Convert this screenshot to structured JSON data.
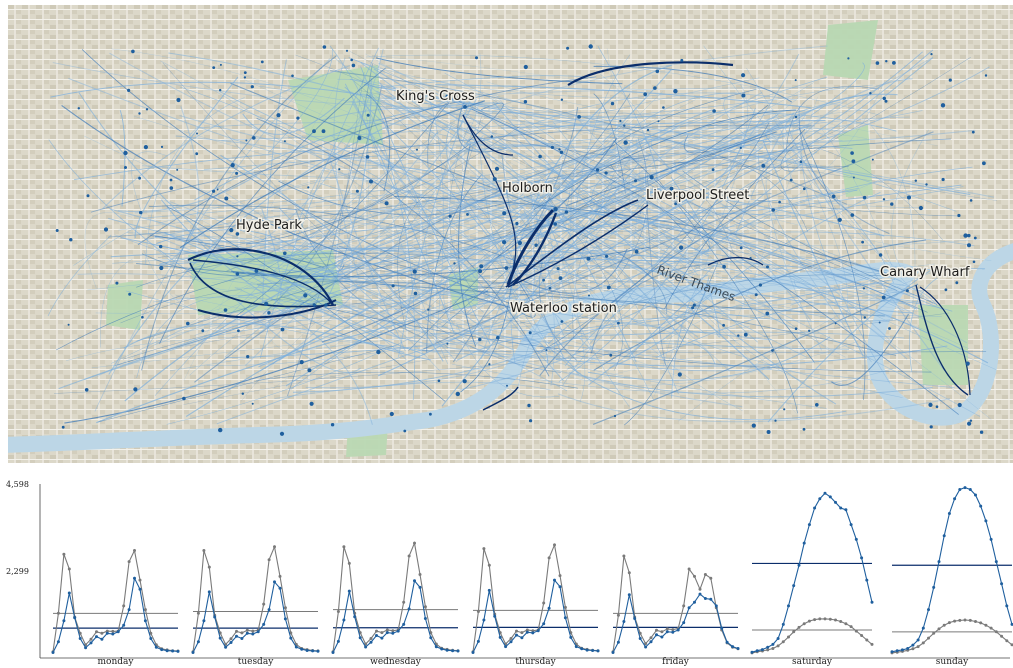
{
  "map": {
    "labels": [
      {
        "id": "kings-cross",
        "text": "King's Cross"
      },
      {
        "id": "hyde-park",
        "text": "Hyde Park"
      },
      {
        "id": "holborn",
        "text": "Holborn"
      },
      {
        "id": "liverpool-street",
        "text": "Liverpool Street"
      },
      {
        "id": "waterloo-station",
        "text": "Waterloo station"
      },
      {
        "id": "canary-wharf",
        "text": "Canary Wharf"
      }
    ],
    "river_label": "River Thames",
    "colors": {
      "land": "#e6e3d8",
      "streets": "#ffffff",
      "parks": "#b9d8b3",
      "water": "#bcd6e6",
      "flow_light": "#8fb9df",
      "flow_dark": "#0b2e6b",
      "station": "#1f5f9e"
    }
  },
  "chart_data": {
    "type": "line",
    "title": "",
    "ylim": [
      0,
      4598
    ],
    "yticks": [
      "4,598",
      "2,299"
    ],
    "ytick_values": [
      4598,
      2299
    ],
    "x_hours": [
      0,
      1,
      2,
      3,
      4,
      5,
      6,
      7,
      8,
      9,
      10,
      11,
      12,
      13,
      14,
      15,
      16,
      17,
      18,
      19,
      20,
      21,
      22,
      23
    ],
    "colors": {
      "weekday_series": "#1f5f9e",
      "other_series": "#7a7a7a",
      "avg_line": "#0b2e6b",
      "avg_line_other": "#7a7a7a"
    },
    "days": [
      {
        "name": "monday",
        "blue": [
          40,
          330,
          900,
          1650,
          980,
          420,
          170,
          300,
          470,
          400,
          560,
          540,
          600,
          780,
          1200,
          2050,
          1750,
          900,
          420,
          180,
          120,
          90,
          80,
          70
        ],
        "gray": [
          60,
          1100,
          2700,
          2300,
          1000,
          560,
          250,
          400,
          600,
          560,
          620,
          610,
          620,
          1300,
          2500,
          2800,
          2000,
          1200,
          560,
          250,
          140,
          110,
          90,
          80
        ],
        "avg_blue": 700,
        "avg_gray": 1100
      },
      {
        "name": "tuesday",
        "blue": [
          40,
          330,
          900,
          1680,
          1000,
          430,
          180,
          310,
          480,
          420,
          560,
          540,
          600,
          800,
          1200,
          1950,
          1780,
          950,
          430,
          190,
          130,
          95,
          85,
          75
        ],
        "gray": [
          60,
          1100,
          2800,
          2350,
          1050,
          570,
          260,
          410,
          610,
          570,
          640,
          620,
          640,
          1350,
          2550,
          2900,
          2100,
          1250,
          570,
          260,
          150,
          120,
          95,
          85
        ],
        "avg_blue": 700,
        "avg_gray": 1150
      },
      {
        "name": "wednesday",
        "blue": [
          40,
          340,
          920,
          1700,
          1010,
          440,
          190,
          320,
          500,
          430,
          580,
          560,
          620,
          800,
          1220,
          1980,
          1800,
          960,
          440,
          195,
          135,
          100,
          90,
          80
        ],
        "gray": [
          60,
          1150,
          2900,
          2450,
          1100,
          580,
          270,
          420,
          620,
          580,
          650,
          630,
          650,
          1400,
          2650,
          3000,
          2150,
          1280,
          580,
          270,
          155,
          125,
          100,
          90
        ],
        "avg_blue": 710,
        "avg_gray": 1200
      },
      {
        "name": "thursday",
        "blue": [
          40,
          340,
          920,
          1720,
          1020,
          450,
          200,
          330,
          510,
          440,
          590,
          570,
          630,
          820,
          1240,
          2000,
          1820,
          980,
          450,
          200,
          140,
          105,
          95,
          85
        ],
        "gray": [
          60,
          1150,
          2850,
          2400,
          1080,
          580,
          270,
          420,
          620,
          580,
          650,
          630,
          650,
          1380,
          2600,
          2950,
          2120,
          1260,
          580,
          270,
          155,
          125,
          100,
          90
        ],
        "avg_blue": 720,
        "avg_gray": 1180
      },
      {
        "name": "friday",
        "blue": [
          40,
          320,
          880,
          1600,
          960,
          420,
          190,
          330,
          520,
          460,
          600,
          590,
          650,
          850,
          1250,
          1400,
          1620,
          1500,
          1480,
          1300,
          700,
          320,
          200,
          150
        ],
        "gray": [
          60,
          1050,
          2650,
          2200,
          1000,
          560,
          280,
          440,
          640,
          600,
          680,
          660,
          690,
          1300,
          2300,
          2100,
          1750,
          2150,
          2050,
          1250,
          650,
          300,
          180,
          140
        ],
        "avg_blue": 720,
        "avg_gray": 1100
      },
      {
        "name": "saturday",
        "blue": [
          50,
          90,
          120,
          180,
          260,
          420,
          800,
          1300,
          1850,
          2400,
          3000,
          3500,
          3950,
          4200,
          4350,
          4250,
          4100,
          3950,
          3900,
          3500,
          3100,
          2600,
          2000,
          1400
        ],
        "gray": [
          30,
          60,
          80,
          110,
          150,
          220,
          330,
          460,
          600,
          720,
          820,
          890,
          930,
          950,
          950,
          940,
          920,
          880,
          820,
          740,
          620,
          500,
          380,
          260
        ],
        "avg_blue": 2450,
        "avg_gray": 650
      },
      {
        "name": "sunday",
        "blue": [
          60,
          90,
          110,
          150,
          240,
          380,
          700,
          1200,
          1800,
          2500,
          3200,
          3800,
          4200,
          4450,
          4500,
          4450,
          4300,
          4000,
          3600,
          3100,
          2500,
          1900,
          1300,
          800
        ],
        "gray": [
          30,
          50,
          70,
          100,
          140,
          200,
          300,
          430,
          560,
          680,
          780,
          850,
          890,
          910,
          920,
          910,
          880,
          840,
          780,
          700,
          600,
          480,
          360,
          250
        ],
        "avg_blue": 2400,
        "avg_gray": 600
      }
    ]
  }
}
